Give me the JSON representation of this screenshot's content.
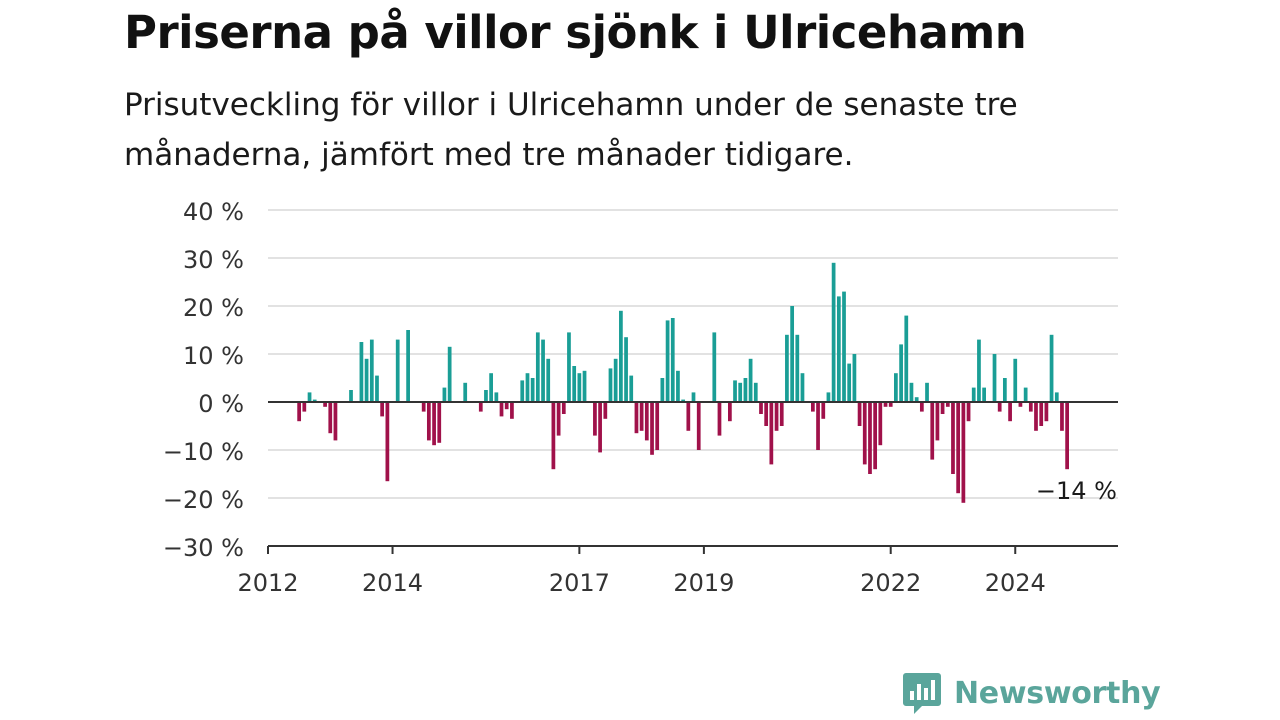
{
  "title": "Priserna på villor sjönk i Ulricehamn",
  "subtitle": "Prisutveckling för villor i Ulricehamn under de senaste tre månaderna, jämfört med tre månader tidigare.",
  "brand": {
    "name": "Newsworthy",
    "icon": "newsworthy-logo-icon"
  },
  "colors": {
    "positive": "#1a9e96",
    "negative": "#a0114a",
    "grid": "#d9d9d9",
    "axis": "#333333",
    "brand": "#5aa59b"
  },
  "chart_data": {
    "type": "bar",
    "ylim": [
      -30,
      40
    ],
    "y_ticks": [
      -30,
      -20,
      -10,
      0,
      10,
      20,
      30,
      40
    ],
    "y_tick_labels": [
      "−30 %",
      "−20 %",
      "−10 %",
      "0 %",
      "10 %",
      "20 %",
      "30 %",
      "40 %"
    ],
    "x_ticks": [
      2012,
      2014,
      2017,
      2019,
      2022,
      2024
    ],
    "x_tick_labels": [
      "2012",
      "2014",
      "2017",
      "2019",
      "2022",
      "2024"
    ],
    "grid": true,
    "last_value_label": "−14 %",
    "x": [
      2012.5,
      2012.583,
      2012.667,
      2012.75,
      2012.833,
      2012.917,
      2013.0,
      2013.083,
      2013.167,
      2013.25,
      2013.333,
      2013.417,
      2013.5,
      2013.583,
      2013.667,
      2013.75,
      2013.833,
      2013.917,
      2014.0,
      2014.083,
      2014.167,
      2014.25,
      2014.333,
      2014.417,
      2014.5,
      2014.583,
      2014.667,
      2014.75,
      2014.833,
      2014.917,
      2015.0,
      2015.083,
      2015.167,
      2015.25,
      2015.333,
      2015.417,
      2015.5,
      2015.583,
      2015.667,
      2015.75,
      2015.833,
      2015.917,
      2016.0,
      2016.083,
      2016.167,
      2016.25,
      2016.333,
      2016.417,
      2016.5,
      2016.583,
      2016.667,
      2016.75,
      2016.833,
      2016.917,
      2017.0,
      2017.083,
      2017.167,
      2017.25,
      2017.333,
      2017.417,
      2017.5,
      2017.583,
      2017.667,
      2017.75,
      2017.833,
      2017.917,
      2018.0,
      2018.083,
      2018.167,
      2018.25,
      2018.333,
      2018.417,
      2018.5,
      2018.583,
      2018.667,
      2018.75,
      2018.833,
      2018.917,
      2019.0,
      2019.083,
      2019.167,
      2019.25,
      2019.333,
      2019.417,
      2019.5,
      2019.583,
      2019.667,
      2019.75,
      2019.833,
      2019.917,
      2020.0,
      2020.083,
      2020.167,
      2020.25,
      2020.333,
      2020.417,
      2020.5,
      2020.583,
      2020.667,
      2020.75,
      2020.833,
      2020.917,
      2021.0,
      2021.083,
      2021.167,
      2021.25,
      2021.333,
      2021.417,
      2021.5,
      2021.583,
      2021.667,
      2021.75,
      2021.833,
      2021.917,
      2022.0,
      2022.083,
      2022.167,
      2022.25,
      2022.333,
      2022.417,
      2022.5,
      2022.583,
      2022.667,
      2022.75,
      2022.833,
      2022.917,
      2023.0,
      2023.083,
      2023.167,
      2023.25,
      2023.333,
      2023.417,
      2023.5,
      2023.583,
      2023.667,
      2023.75,
      2023.833,
      2023.917,
      2024.0,
      2024.083,
      2024.167,
      2024.25,
      2024.333,
      2024.417,
      2024.5,
      2024.583,
      2024.667,
      2024.75,
      2024.833
    ],
    "values": [
      -4,
      -2,
      2,
      0.5,
      0,
      -1,
      -6.5,
      -8,
      0,
      0,
      2.5,
      0,
      12.5,
      9,
      13,
      5.5,
      -3,
      -16.5,
      0,
      13,
      0,
      15,
      0,
      0,
      -2,
      -8,
      -9,
      -8.5,
      3,
      11.5,
      0,
      0,
      4,
      0,
      0,
      -2,
      2.5,
      6,
      2,
      -3,
      -1.5,
      -3.5,
      0,
      4.5,
      6,
      5,
      14.5,
      13,
      9,
      -14,
      -7,
      -2.5,
      14.5,
      7.5,
      6,
      6.5,
      0,
      -7,
      -10.5,
      -3.5,
      7,
      9,
      19,
      13.5,
      5.5,
      -6.5,
      -6,
      -8,
      -11,
      -10,
      5,
      17,
      17.5,
      6.5,
      0.5,
      -6,
      2,
      -10,
      0,
      0,
      14.5,
      -7,
      0,
      -4,
      4.5,
      4,
      5,
      9,
      4,
      -2.5,
      -5,
      -13,
      -6,
      -5,
      14,
      20,
      14,
      6,
      0,
      -2,
      -10,
      -3.5,
      2,
      29,
      22,
      23,
      8,
      10,
      -5,
      -13,
      -15,
      -14,
      -9,
      -1,
      -1,
      6,
      12,
      18,
      4,
      1,
      -2,
      4,
      -12,
      -8,
      -2.5,
      -1,
      -15,
      -19,
      -21,
      -4,
      3,
      13,
      3,
      0,
      10,
      -2,
      5,
      -4,
      9,
      -1,
      3,
      -2,
      -6,
      -5,
      -4,
      14,
      2,
      -6,
      -14
    ]
  }
}
